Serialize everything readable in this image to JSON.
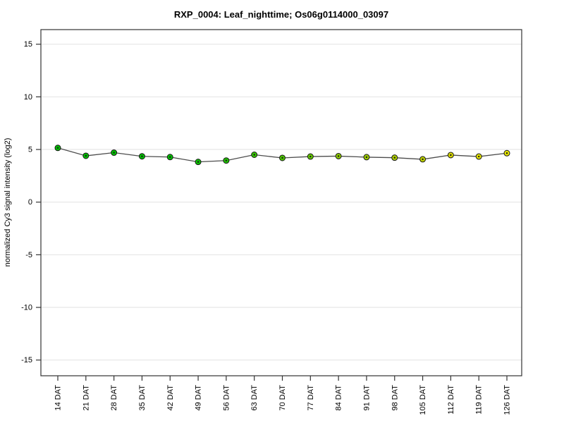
{
  "chart_data": {
    "type": "line",
    "title": "RXP_0004: Leaf_nighttime; Os06g0114000_03097",
    "xlabel": "",
    "ylabel": "normalized Cy3 signal intensity (log2)",
    "categories": [
      "14 DAT",
      "21 DAT",
      "28 DAT",
      "35 DAT",
      "42 DAT",
      "49 DAT",
      "56 DAT",
      "63 DAT",
      "70 DAT",
      "77 DAT",
      "84 DAT",
      "91 DAT",
      "98 DAT",
      "105 DAT",
      "112 DAT",
      "119 DAT",
      "126 DAT"
    ],
    "values": [
      5.15,
      4.4,
      4.7,
      4.35,
      4.28,
      3.82,
      3.95,
      4.5,
      4.2,
      4.33,
      4.37,
      4.27,
      4.22,
      4.07,
      4.47,
      4.33,
      4.65
    ],
    "errors": [
      0.15,
      0.25,
      0.12,
      0.3,
      0.2,
      0.12,
      0.25,
      0.18,
      0.3,
      0.15,
      0.12,
      0.12,
      0.15,
      0.2,
      0.12,
      0.25,
      0.12
    ],
    "point_colors": [
      "#00bd00",
      "#00bd00",
      "#00bd00",
      "#00bd00",
      "#00bd00",
      "#0cbf00",
      "#1fc100",
      "#35c300",
      "#4cc500",
      "#63c700",
      "#8cc900",
      "#9ccb00",
      "#accd00",
      "#bdd000",
      "#d9d900",
      "#dfdf00",
      "#e5e500"
    ],
    "ylim": [
      -16.5,
      16.5
    ],
    "y_ticks": [
      -15,
      -10,
      -5,
      0,
      5,
      10,
      15
    ],
    "grid": "horizontal-only",
    "legend": "none",
    "colors": {
      "line": "#4d4d4d",
      "grid": "#e2e2e2",
      "axis": "#333333",
      "point_border": "#1a1a1a",
      "background": "#ffffff"
    }
  }
}
